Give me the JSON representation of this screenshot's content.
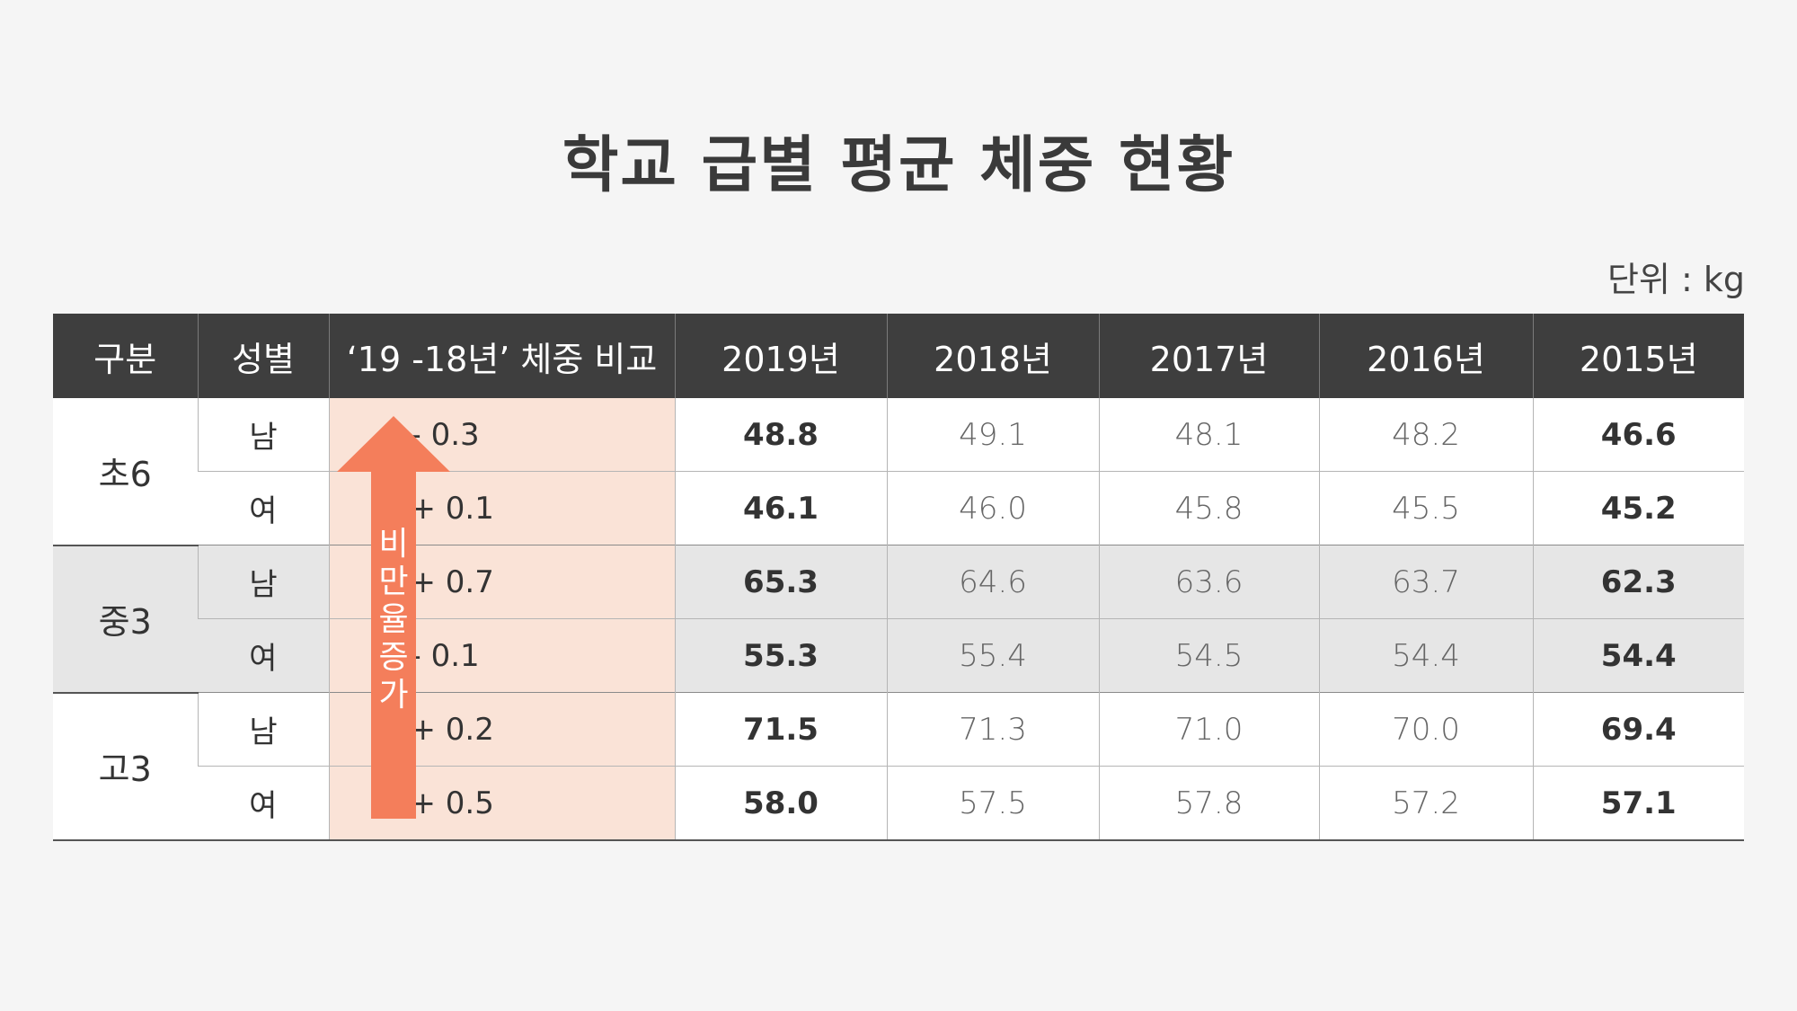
{
  "title": "학교 급별 평균 체중 현황",
  "unit": "단위 : kg",
  "headers": [
    "구분",
    "성별",
    "‘19 -18년’ 체중 비교",
    "2019년",
    "2018년",
    "2017년",
    "2016년",
    "2015년"
  ],
  "arrow": {
    "label": "비만율증가",
    "color": "#f47e5b"
  },
  "groups": [
    {
      "name": "초6",
      "shade": false,
      "rows": [
        {
          "gender": "남",
          "diff": "- 0.3",
          "values": [
            "48.8",
            "49.1",
            "48.1",
            "48.2",
            "46.6"
          ]
        },
        {
          "gender": "여",
          "diff": "+ 0.1",
          "values": [
            "46.1",
            "46.0",
            "45.8",
            "45.5",
            "45.2"
          ]
        }
      ]
    },
    {
      "name": "중3",
      "shade": true,
      "rows": [
        {
          "gender": "남",
          "diff": "+ 0.7",
          "values": [
            "65.3",
            "64.6",
            "63.6",
            "63.7",
            "62.3"
          ]
        },
        {
          "gender": "여",
          "diff": "- 0.1",
          "values": [
            "55.3",
            "55.4",
            "54.5",
            "54.4",
            "54.4"
          ]
        }
      ]
    },
    {
      "name": "고3",
      "shade": false,
      "rows": [
        {
          "gender": "남",
          "diff": "+ 0.2",
          "values": [
            "71.5",
            "71.3",
            "71.0",
            "70.0",
            "69.4"
          ]
        },
        {
          "gender": "여",
          "diff": "+ 0.5",
          "values": [
            "58.0",
            "57.5",
            "57.8",
            "57.2",
            "57.1"
          ]
        }
      ]
    }
  ]
}
